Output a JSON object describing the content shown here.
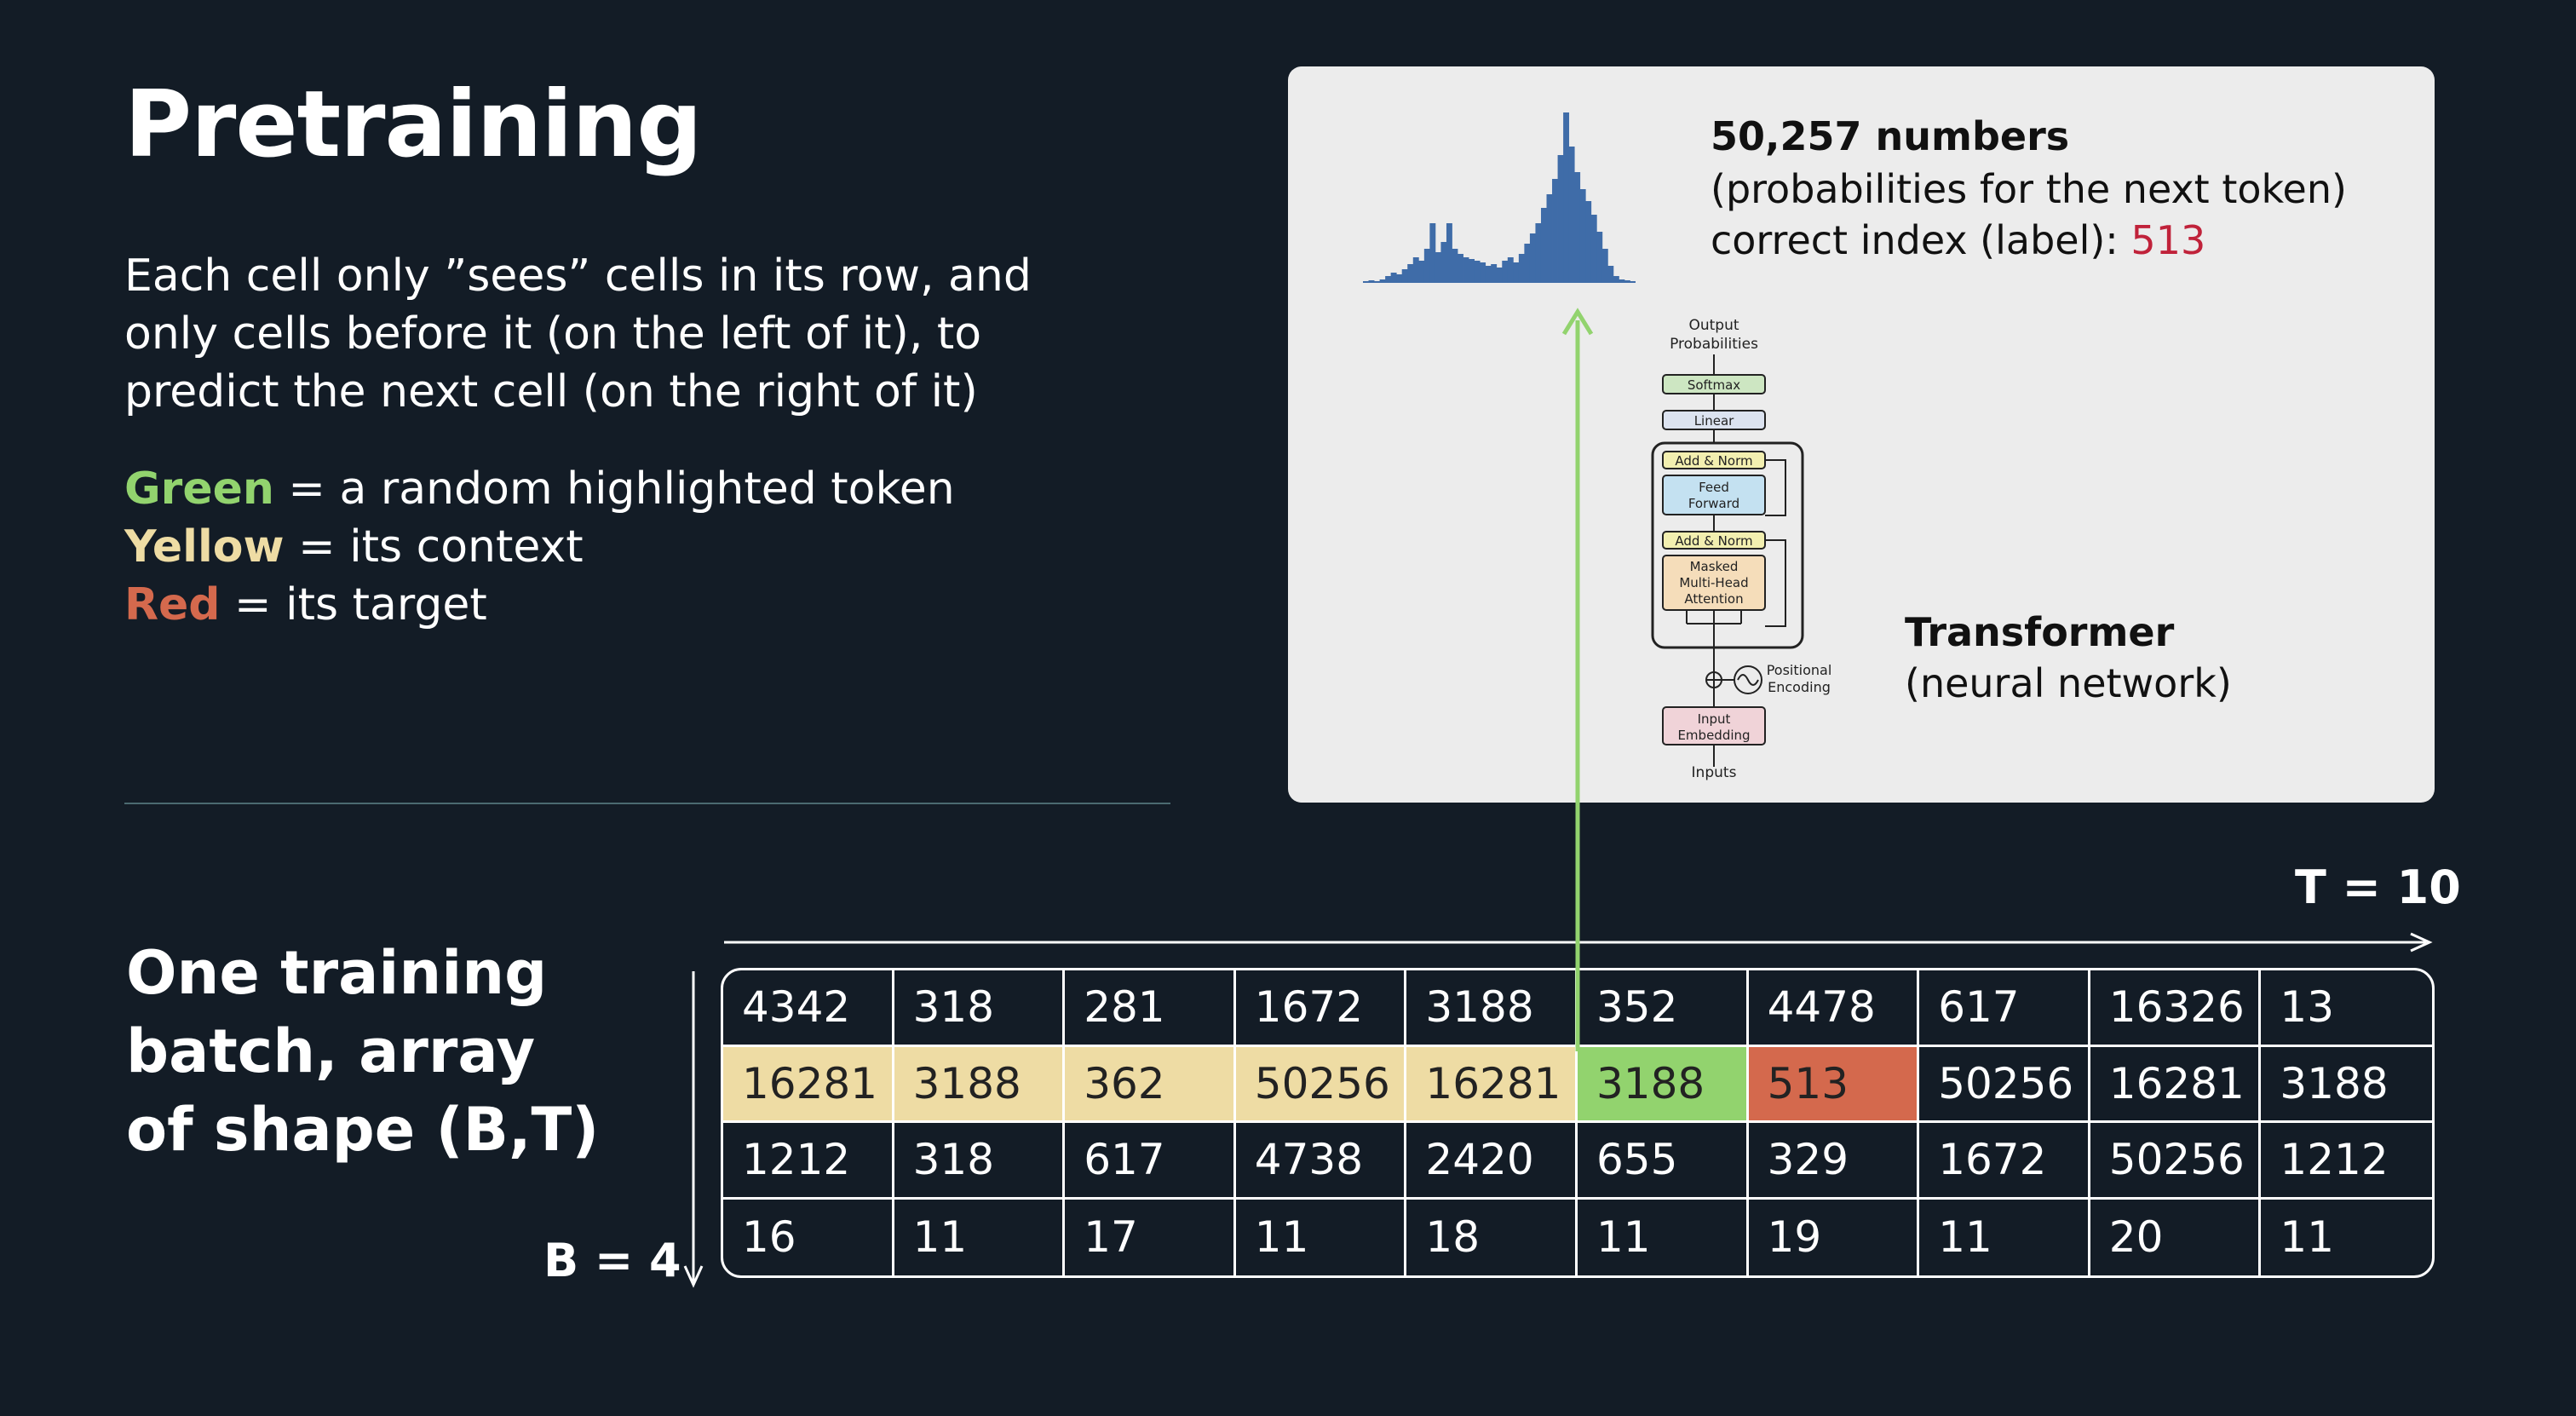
{
  "slide": {
    "title": "Pretraining",
    "description": "Each cell only ”sees” cells in its row, and only cells before it (on the left of it), to predict the next cell (on the right of it)",
    "legend": [
      {
        "keyword": "Green",
        "rest": " = a random highlighted token",
        "color": "#92d36e"
      },
      {
        "keyword": "Yellow",
        "rest": " = its context",
        "color": "#eedca4"
      },
      {
        "keyword": "Red",
        "rest": " = its target",
        "color": "#d4694d"
      }
    ]
  },
  "panel": {
    "numbers_title": "50,257 numbers",
    "numbers_sub": "(probabilities for the next token)",
    "label_prefix": "correct index (label): ",
    "label_value": "513",
    "transformer_title": "Transformer",
    "transformer_sub": "(neural network)",
    "arch": {
      "output": [
        "Output",
        "Probabilities"
      ],
      "softmax": "Softmax",
      "linear": "Linear",
      "add_norm": "Add & Norm",
      "feed_forward": [
        "Feed",
        "Forward"
      ],
      "attention": [
        "Masked",
        "Multi-Head",
        "Attention"
      ],
      "positional": [
        "Positional",
        "Encoding"
      ],
      "embedding": [
        "Input",
        "Embedding"
      ],
      "inputs": "Inputs"
    }
  },
  "batch": {
    "label": "One training batch, array of shape (B,T)",
    "t_label": "T = 10",
    "b_label": "B = 4",
    "rows": [
      [
        "4342",
        "318",
        "281",
        "1672",
        "3188",
        "352",
        "4478",
        "617",
        "16326",
        "13"
      ],
      [
        "16281",
        "3188",
        "362",
        "50256",
        "16281",
        "3188",
        "513",
        "50256",
        "16281",
        "3188"
      ],
      [
        "1212",
        "318",
        "617",
        "4738",
        "2420",
        "655",
        "329",
        "1672",
        "50256",
        "1212"
      ],
      [
        "16",
        "11",
        "17",
        "11",
        "18",
        "11",
        "19",
        "11",
        "20",
        "11"
      ]
    ],
    "highlight": {
      "row": 1,
      "context_cols": [
        0,
        1,
        2,
        3,
        4
      ],
      "token_col": 5,
      "target_col": 6
    }
  },
  "colors": {
    "background": "#131c26",
    "panel": "#ececec",
    "histogram": "#3f6ca8",
    "arrow": "#92d36e"
  }
}
